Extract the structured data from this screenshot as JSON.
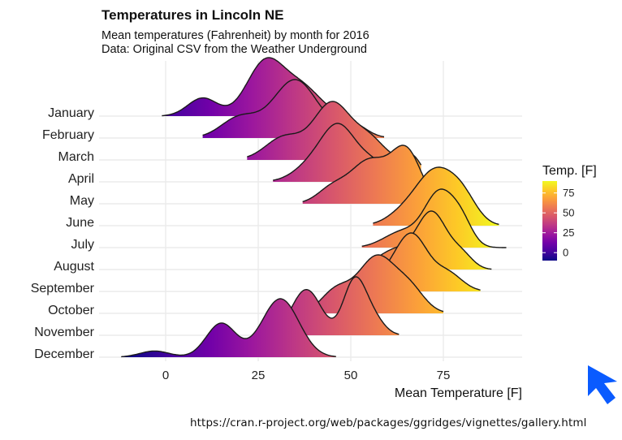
{
  "header": {
    "title": "Temperatures in Lincoln NE",
    "subtitle_line1": "Mean temperatures (Fahrenheit) by month for 2016",
    "subtitle_line2": "Data: Original CSV from the Weather Underground"
  },
  "source_url": "https://cran.r-project.org/web/packages/ggridges/vignettes/gallery.html",
  "colors": {
    "background": "#ffffff",
    "grid": "#ebebeb",
    "outline": "#1a1a1a",
    "cursor": "#0a5bff"
  },
  "chart_data": {
    "type": "ridgeline",
    "title": "Temperatures in Lincoln NE",
    "xlabel": "Mean Temperature [F]",
    "ylabel": "",
    "xlim": [
      -15,
      95
    ],
    "x_ticks": [
      0,
      25,
      50,
      75
    ],
    "legend": {
      "title": "Temp. [F]",
      "ticks": [
        0,
        25,
        50,
        75
      ],
      "range": [
        -10,
        90
      ],
      "placement": "right",
      "colormap": "plasma"
    },
    "series": [
      {
        "name": "January",
        "range": [
          -1,
          49
        ],
        "peaks": [
          [
            10,
            0.3,
            4
          ],
          [
            27,
            0.9,
            5
          ],
          [
            37,
            0.45,
            5
          ]
        ]
      },
      {
        "name": "February",
        "range": [
          10,
          59
        ],
        "peaks": [
          [
            20,
            0.35,
            5
          ],
          [
            35,
            1.0,
            6
          ],
          [
            50,
            0.25,
            4
          ]
        ]
      },
      {
        "name": "March",
        "range": [
          22,
          63
        ],
        "peaks": [
          [
            32,
            0.4,
            5
          ],
          [
            45,
            1.0,
            5
          ],
          [
            55,
            0.35,
            4
          ]
        ]
      },
      {
        "name": "April",
        "range": [
          29,
          69
        ],
        "peaks": [
          [
            40,
            0.35,
            5
          ],
          [
            47,
            1.0,
            4.5
          ],
          [
            56,
            0.35,
            4
          ],
          [
            66,
            0.55,
            3
          ]
        ]
      },
      {
        "name": "May",
        "range": [
          37,
          72
        ],
        "peaks": [
          [
            45,
            0.25,
            4
          ],
          [
            55,
            0.7,
            5
          ],
          [
            65,
            0.85,
            4
          ]
        ]
      },
      {
        "name": "June",
        "range": [
          56,
          90
        ],
        "peaks": [
          [
            66,
            0.4,
            5
          ],
          [
            73,
            1.0,
            4.5
          ],
          [
            80,
            0.65,
            4
          ]
        ]
      },
      {
        "name": "July",
        "range": [
          53,
          92
        ],
        "peaks": [
          [
            64,
            0.3,
            5
          ],
          [
            74,
            1.0,
            4
          ],
          [
            80,
            0.4,
            3
          ]
        ]
      },
      {
        "name": "August",
        "range": [
          55,
          88
        ],
        "peaks": [
          [
            62,
            0.35,
            5
          ],
          [
            72,
            1.0,
            4
          ],
          [
            80,
            0.25,
            3
          ]
        ]
      },
      {
        "name": "September",
        "range": [
          55,
          85
        ],
        "peaks": [
          [
            62,
            0.45,
            5
          ],
          [
            67,
            0.95,
            4
          ],
          [
            76,
            0.4,
            4
          ]
        ]
      },
      {
        "name": "October",
        "range": [
          37,
          75
        ],
        "peaks": [
          [
            46,
            0.4,
            4
          ],
          [
            57,
            1.0,
            5
          ],
          [
            66,
            0.4,
            4
          ]
        ]
      },
      {
        "name": "November",
        "range": [
          30,
          63
        ],
        "peaks": [
          [
            38,
            0.85,
            4
          ],
          [
            51,
            1.0,
            3
          ],
          [
            56,
            0.3,
            3
          ]
        ]
      },
      {
        "name": "December",
        "range": [
          -12,
          46
        ],
        "peaks": [
          [
            -3,
            0.1,
            4
          ],
          [
            15,
            0.55,
            4
          ],
          [
            31,
            0.95,
            5
          ]
        ]
      }
    ]
  }
}
